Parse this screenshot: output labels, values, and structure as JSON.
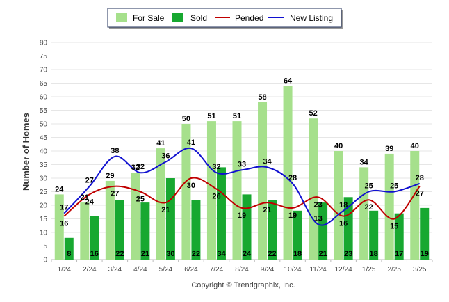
{
  "chart_data": {
    "type": "bar",
    "categories": [
      "1/24",
      "2/24",
      "3/24",
      "4/24",
      "5/24",
      "6/24",
      "7/24",
      "8/24",
      "9/24",
      "10/24",
      "11/24",
      "12/24",
      "1/25",
      "2/25",
      "3/25"
    ],
    "series": [
      {
        "name": "For Sale",
        "kind": "bar",
        "color": "#a6e08c",
        "values": [
          24,
          21,
          29,
          32,
          41,
          50,
          51,
          51,
          58,
          64,
          52,
          40,
          34,
          39,
          40
        ]
      },
      {
        "name": "Sold",
        "kind": "bar",
        "color": "#17a830",
        "values": [
          8,
          16,
          22,
          21,
          30,
          22,
          34,
          24,
          22,
          18,
          21,
          23,
          18,
          17,
          19
        ]
      },
      {
        "name": "Pended",
        "kind": "line",
        "color": "#c00000",
        "values": [
          16,
          24,
          27,
          25,
          21,
          30,
          26,
          19,
          21,
          19,
          23,
          16,
          22,
          15,
          27
        ]
      },
      {
        "name": "New Listing",
        "kind": "line",
        "color": "#1010d0",
        "values": [
          17,
          27,
          38,
          32,
          36,
          41,
          32,
          33,
          34,
          28,
          13,
          18,
          25,
          25,
          28
        ]
      }
    ],
    "title": "",
    "xlabel": "",
    "ylabel": "Number of Homes",
    "ylim": [
      0,
      80
    ],
    "yticks": [
      0,
      5,
      10,
      15,
      20,
      25,
      30,
      35,
      40,
      45,
      50,
      55,
      60,
      65,
      70,
      75,
      80
    ],
    "grid": true,
    "legend": "top-center"
  },
  "footer": {
    "copyright": "Copyright © Trendgraphix, Inc."
  }
}
